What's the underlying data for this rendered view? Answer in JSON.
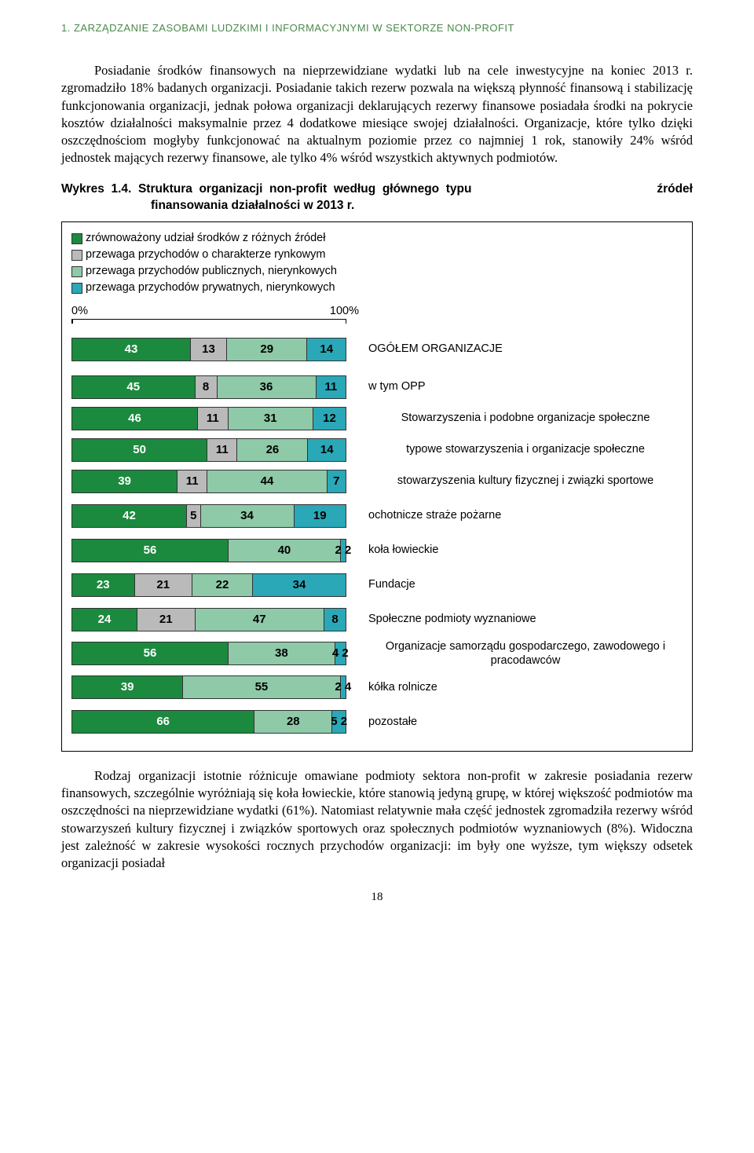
{
  "header": "1. ZARZĄDZANIE ZASOBAMI LUDZKIMI I INFORMACYJNYMI W SEKTORZE NON-PROFIT",
  "para1": "Posiadanie środków finansowych na nieprzewidziane wydatki lub na cele inwestycyjne na koniec 2013 r. zgromadziło 18% badanych organizacji. Posiadanie takich rezerw pozwala na większą płynność finansową i stabilizację funkcjonowania organizacji, jednak połowa organizacji deklarujących rezerwy finansowe posiadała środki na pokrycie kosztów działalności maksymalnie przez 4 dodatkowe miesiące swojej działalności. Organizacje, które tylko dzięki oszczędnościom mogłyby funkcjonować na aktualnym poziomie przez co najmniej 1 rok, stanowiły 24% wśród jednostek mających rezerwy finansowe, ale tylko 4% wśród wszystkich aktywnych podmiotów.",
  "wykres_title_line1_left": "Wykres  1.4.  Struktura  organizacji  non-profit  według  głównego  typu",
  "wykres_title_line1_right": "źródeł",
  "wykres_title_line2": "finansowania działalności w 2013 r.",
  "legend": {
    "items": [
      {
        "label": "zrównoważony udział środków z różnych źródeł",
        "color": "#1b8a3e"
      },
      {
        "label": "przewaga przychodów o charakterze rynkowym",
        "color": "#bababa"
      },
      {
        "label": "przewaga przychodów publicznych, nierynkowych",
        "color": "#8ec9a8"
      },
      {
        "label": "przewaga przychodów prywatnych, nierynkowych",
        "color": "#2aa8b8"
      }
    ]
  },
  "axis": {
    "min": "0%",
    "max": "100%"
  },
  "colors": {
    "c1": "#1b8a3e",
    "c2": "#bababa",
    "c3": "#8ec9a8",
    "c4": "#2aa8b8",
    "c1_text": "#ffffff",
    "c2_text": "#000000",
    "c3_text": "#000000",
    "c4_text": "#000000"
  },
  "rows": [
    {
      "label": "OGÓŁEM ORGANIZACJE",
      "vals": [
        43,
        13,
        29,
        14
      ],
      "center": false,
      "gap": "extra"
    },
    {
      "label": "w tym OPP",
      "vals": [
        45,
        8,
        36,
        11
      ],
      "center": false,
      "gap": "none"
    },
    {
      "label": "Stowarzyszenia i podobne organizacje społeczne",
      "vals": [
        46,
        11,
        31,
        12
      ],
      "center": true,
      "gap": "none"
    },
    {
      "label": "typowe stowarzyszenia i organizacje społeczne",
      "vals": [
        50,
        11,
        26,
        14
      ],
      "center": true,
      "gap": "none"
    },
    {
      "label": "stowarzyszenia kultury fizycznej i związki sportowe",
      "vals": [
        39,
        11,
        44,
        7
      ],
      "center": true,
      "gap": "none"
    },
    {
      "label": "ochotnicze straże pożarne",
      "vals": [
        42,
        5,
        34,
        19
      ],
      "center": false,
      "gap": "above"
    },
    {
      "label": "koła łowieckie",
      "vals": [
        56,
        0,
        40,
        2
      ],
      "labels_override": [
        "56",
        "",
        "40",
        "2 2"
      ],
      "center": false,
      "gap": "above",
      "showZero": false
    },
    {
      "label": "Fundacje",
      "vals": [
        23,
        21,
        22,
        34
      ],
      "center": false,
      "gap": "above"
    },
    {
      "label": "Społeczne podmioty wyznaniowe",
      "vals": [
        24,
        21,
        47,
        8
      ],
      "center": false,
      "gap": "above"
    },
    {
      "label": "Organizacje samorządu gospodarczego, zawodowego i pracodawców",
      "vals": [
        56,
        0,
        38,
        4
      ],
      "labels_override": [
        "56",
        "",
        "38",
        "4 2"
      ],
      "center": true,
      "gap": "none",
      "showZero": false
    },
    {
      "label": "kółka rolnicze",
      "vals": [
        39,
        0,
        55,
        2
      ],
      "labels_override": [
        "39",
        "",
        "55",
        "2 4"
      ],
      "center": false,
      "gap": "none",
      "showZero": false
    },
    {
      "label": "pozostałe",
      "vals": [
        66,
        0,
        28,
        5
      ],
      "labels_override": [
        "66",
        "",
        "28",
        "5 2"
      ],
      "center": false,
      "gap": "above",
      "showZero": false
    }
  ],
  "para2": "Rodzaj organizacji istotnie różnicuje omawiane podmioty sektora non-profit w zakresie posiadania rezerw finansowych, szczególnie wyróżniają się koła łowieckie, które stanowią jedyną grupę, w której większość podmiotów ma oszczędności na nieprzewidziane wydatki (61%). Natomiast relatywnie mała część jednostek zgromadziła rezerwy wśród stowarzyszeń kultury fizycznej i związków sportowych oraz społecznych podmiotów wyznaniowych (8%). Widoczna jest zależność w zakresie wysokości rocznych przychodów organizacji: im były one wyższe, tym większy odsetek organizacji posiadał",
  "page_number": "18"
}
